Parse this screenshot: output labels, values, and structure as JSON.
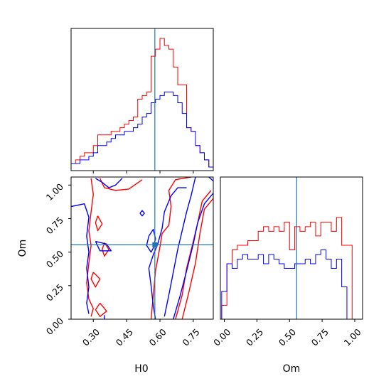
{
  "chart_data": [
    {
      "type": "histogram",
      "panel": "H0 marginal",
      "x": [
        0.21,
        0.23,
        0.25,
        0.27,
        0.29,
        0.31,
        0.33,
        0.35,
        0.37,
        0.39,
        0.41,
        0.43,
        0.45,
        0.47,
        0.49,
        0.51,
        0.53,
        0.55,
        0.57,
        0.59,
        0.61,
        0.63,
        0.65,
        0.67,
        0.69,
        0.71,
        0.73,
        0.75,
        0.77,
        0.79,
        0.81,
        0.83
      ],
      "truth": 0.577,
      "xlim": [
        0.2,
        0.84
      ],
      "series": [
        {
          "color": "#ff0000",
          "values": [
            2,
            3,
            4,
            5,
            5,
            7,
            10,
            10,
            10,
            11,
            11,
            12,
            13,
            14,
            15,
            20,
            21,
            22,
            32,
            34,
            37,
            35,
            34,
            29,
            24,
            24,
            12,
            11,
            7,
            5,
            3,
            1
          ]
        },
        {
          "color": "#0000ff",
          "values": [
            2,
            2,
            3,
            3,
            4,
            5,
            7,
            7,
            8,
            9,
            10,
            10,
            11,
            11,
            12,
            13,
            15,
            16,
            19,
            20,
            21,
            22,
            22,
            21,
            19,
            16,
            12,
            11,
            7,
            5,
            3,
            1
          ]
        }
      ]
    },
    {
      "type": "contour",
      "panel": "H0 vs Om",
      "xlabel": "H0",
      "ylabel": "Om",
      "xlim": [
        0.2,
        0.84
      ],
      "ylim": [
        0.0,
        1.06
      ],
      "xticks": [
        "0.30",
        "0.45",
        "0.60",
        "0.75"
      ],
      "yticks": [
        "0.00",
        "0.25",
        "0.50",
        "0.75",
        "1.00"
      ],
      "truth": {
        "x": 0.577,
        "y": 0.555
      },
      "series": [
        {
          "color": "#ff0000",
          "contours": [
            [
              [
                0.29,
                1.05
              ],
              [
                0.3,
                0.93
              ],
              [
                0.29,
                0.8
              ],
              [
                0.28,
                0.66
              ],
              [
                0.29,
                0.55
              ],
              [
                0.28,
                0.42
              ],
              [
                0.27,
                0.27
              ],
              [
                0.28,
                0.15
              ],
              [
                0.3,
                0.08
              ],
              [
                0.29,
                0.02
              ]
            ],
            [
              [
                0.33,
                1.05
              ],
              [
                0.35,
                0.98
              ],
              [
                0.4,
                0.96
              ],
              [
                0.46,
                0.97
              ],
              [
                0.52,
                1.04
              ]
            ],
            [
              [
                0.32,
                0.77
              ],
              [
                0.34,
                0.71
              ],
              [
                0.32,
                0.66
              ],
              [
                0.31,
                0.72
              ],
              [
                0.32,
                0.77
              ]
            ],
            [
              [
                0.35,
                0.57
              ],
              [
                0.37,
                0.52
              ],
              [
                0.35,
                0.47
              ],
              [
                0.34,
                0.52
              ],
              [
                0.35,
                0.57
              ]
            ],
            [
              [
                0.56,
                0.0
              ],
              [
                0.57,
                0.18
              ],
              [
                0.58,
                0.36
              ],
              [
                0.6,
                0.54
              ],
              [
                0.61,
                0.64
              ],
              [
                0.64,
                0.7
              ],
              [
                0.65,
                0.84
              ],
              [
                0.64,
                0.96
              ],
              [
                0.67,
                1.04
              ],
              [
                0.74,
                1.06
              ]
            ],
            [
              [
                0.67,
                0.0
              ],
              [
                0.7,
                0.18
              ],
              [
                0.72,
                0.38
              ],
              [
                0.75,
                0.58
              ],
              [
                0.77,
                0.72
              ],
              [
                0.79,
                0.88
              ],
              [
                0.83,
                0.96
              ]
            ],
            [
              [
                0.7,
                0.0
              ],
              [
                0.73,
                0.2
              ],
              [
                0.76,
                0.42
              ],
              [
                0.78,
                0.64
              ],
              [
                0.8,
                0.82
              ],
              [
                0.84,
                0.9
              ]
            ],
            [
              [
                0.3,
                0.35
              ],
              [
                0.33,
                0.3
              ],
              [
                0.31,
                0.24
              ],
              [
                0.29,
                0.3
              ],
              [
                0.3,
                0.35
              ]
            ],
            [
              [
                0.33,
                0.12
              ],
              [
                0.36,
                0.06
              ],
              [
                0.33,
                0.02
              ],
              [
                0.31,
                0.07
              ],
              [
                0.33,
                0.12
              ]
            ]
          ]
        },
        {
          "color": "#0000ff",
          "contours": [
            [
              [
                0.2,
                0.84
              ],
              [
                0.26,
                0.86
              ],
              [
                0.28,
                0.76
              ],
              [
                0.27,
                0.62
              ],
              [
                0.28,
                0.5
              ],
              [
                0.27,
                0.38
              ],
              [
                0.28,
                0.24
              ],
              [
                0.27,
                0.12
              ],
              [
                0.28,
                0.04
              ]
            ],
            [
              [
                0.31,
                1.05
              ],
              [
                0.34,
                1.02
              ],
              [
                0.37,
                0.98
              ],
              [
                0.4,
                1.0
              ],
              [
                0.43,
                1.05
              ]
            ],
            [
              [
                0.31,
                0.58
              ],
              [
                0.36,
                0.56
              ],
              [
                0.38,
                0.51
              ],
              [
                0.33,
                0.51
              ],
              [
                0.31,
                0.58
              ]
            ],
            [
              [
                0.35,
                0.0
              ],
              [
                0.35,
                0.03
              ]
            ],
            [
              [
                0.51,
                0.79
              ],
              [
                0.52,
                0.81
              ],
              [
                0.53,
                0.79
              ],
              [
                0.52,
                0.77
              ],
              [
                0.51,
                0.79
              ]
            ],
            [
              [
                0.55,
                0.62
              ],
              [
                0.57,
                0.67
              ],
              [
                0.58,
                0.6
              ],
              [
                0.57,
                0.53
              ],
              [
                0.56,
                0.5
              ],
              [
                0.54,
                0.55
              ],
              [
                0.55,
                0.62
              ]
            ],
            [
              [
                0.58,
                0.0
              ],
              [
                0.57,
                0.1
              ],
              [
                0.56,
                0.25
              ],
              [
                0.55,
                0.38
              ],
              [
                0.57,
                0.48
              ],
              [
                0.59,
                0.56
              ],
              [
                0.61,
                0.68
              ],
              [
                0.62,
                0.8
              ],
              [
                0.65,
                0.92
              ],
              [
                0.68,
                0.98
              ],
              [
                0.72,
                0.98
              ]
            ],
            [
              [
                0.62,
                0.02
              ],
              [
                0.64,
                0.18
              ],
              [
                0.66,
                0.35
              ],
              [
                0.68,
                0.52
              ],
              [
                0.7,
                0.66
              ],
              [
                0.72,
                0.8
              ],
              [
                0.74,
                0.92
              ],
              [
                0.76,
                1.06
              ]
            ],
            [
              [
                0.66,
                0.0
              ],
              [
                0.69,
                0.17
              ],
              [
                0.72,
                0.36
              ],
              [
                0.75,
                0.56
              ],
              [
                0.77,
                0.72
              ],
              [
                0.8,
                0.86
              ],
              [
                0.84,
                0.94
              ]
            ],
            [
              [
                0.82,
                1.06
              ],
              [
                0.84,
                1.03
              ]
            ]
          ]
        }
      ]
    },
    {
      "type": "histogram",
      "panel": "Om marginal",
      "xlabel": "Om",
      "xlim": [
        -0.03,
        1.06
      ],
      "xticks": [
        "0.00",
        "0.25",
        "0.50",
        "0.75",
        "1.00"
      ],
      "truth": 0.555,
      "x": [
        0.0,
        0.04,
        0.08,
        0.12,
        0.16,
        0.2,
        0.24,
        0.28,
        0.32,
        0.36,
        0.4,
        0.44,
        0.48,
        0.52,
        0.56,
        0.6,
        0.64,
        0.68,
        0.72,
        0.76,
        0.8,
        0.84,
        0.88,
        0.92,
        0.96,
        1.0
      ],
      "series": [
        {
          "color": "#ff0000",
          "values": [
            3,
            12,
            15,
            16,
            16,
            17,
            17,
            19,
            20,
            19,
            20,
            19,
            21,
            15,
            20,
            19,
            20,
            21,
            18,
            21,
            21,
            19,
            22,
            16,
            16,
            0
          ]
        },
        {
          "color": "#0000ff",
          "values": [
            6,
            12,
            11,
            13,
            14,
            13,
            13,
            14,
            12,
            14,
            13,
            12,
            11,
            11,
            12,
            12,
            13,
            12,
            14,
            15,
            13,
            11,
            13,
            7,
            0,
            0
          ]
        }
      ]
    }
  ]
}
